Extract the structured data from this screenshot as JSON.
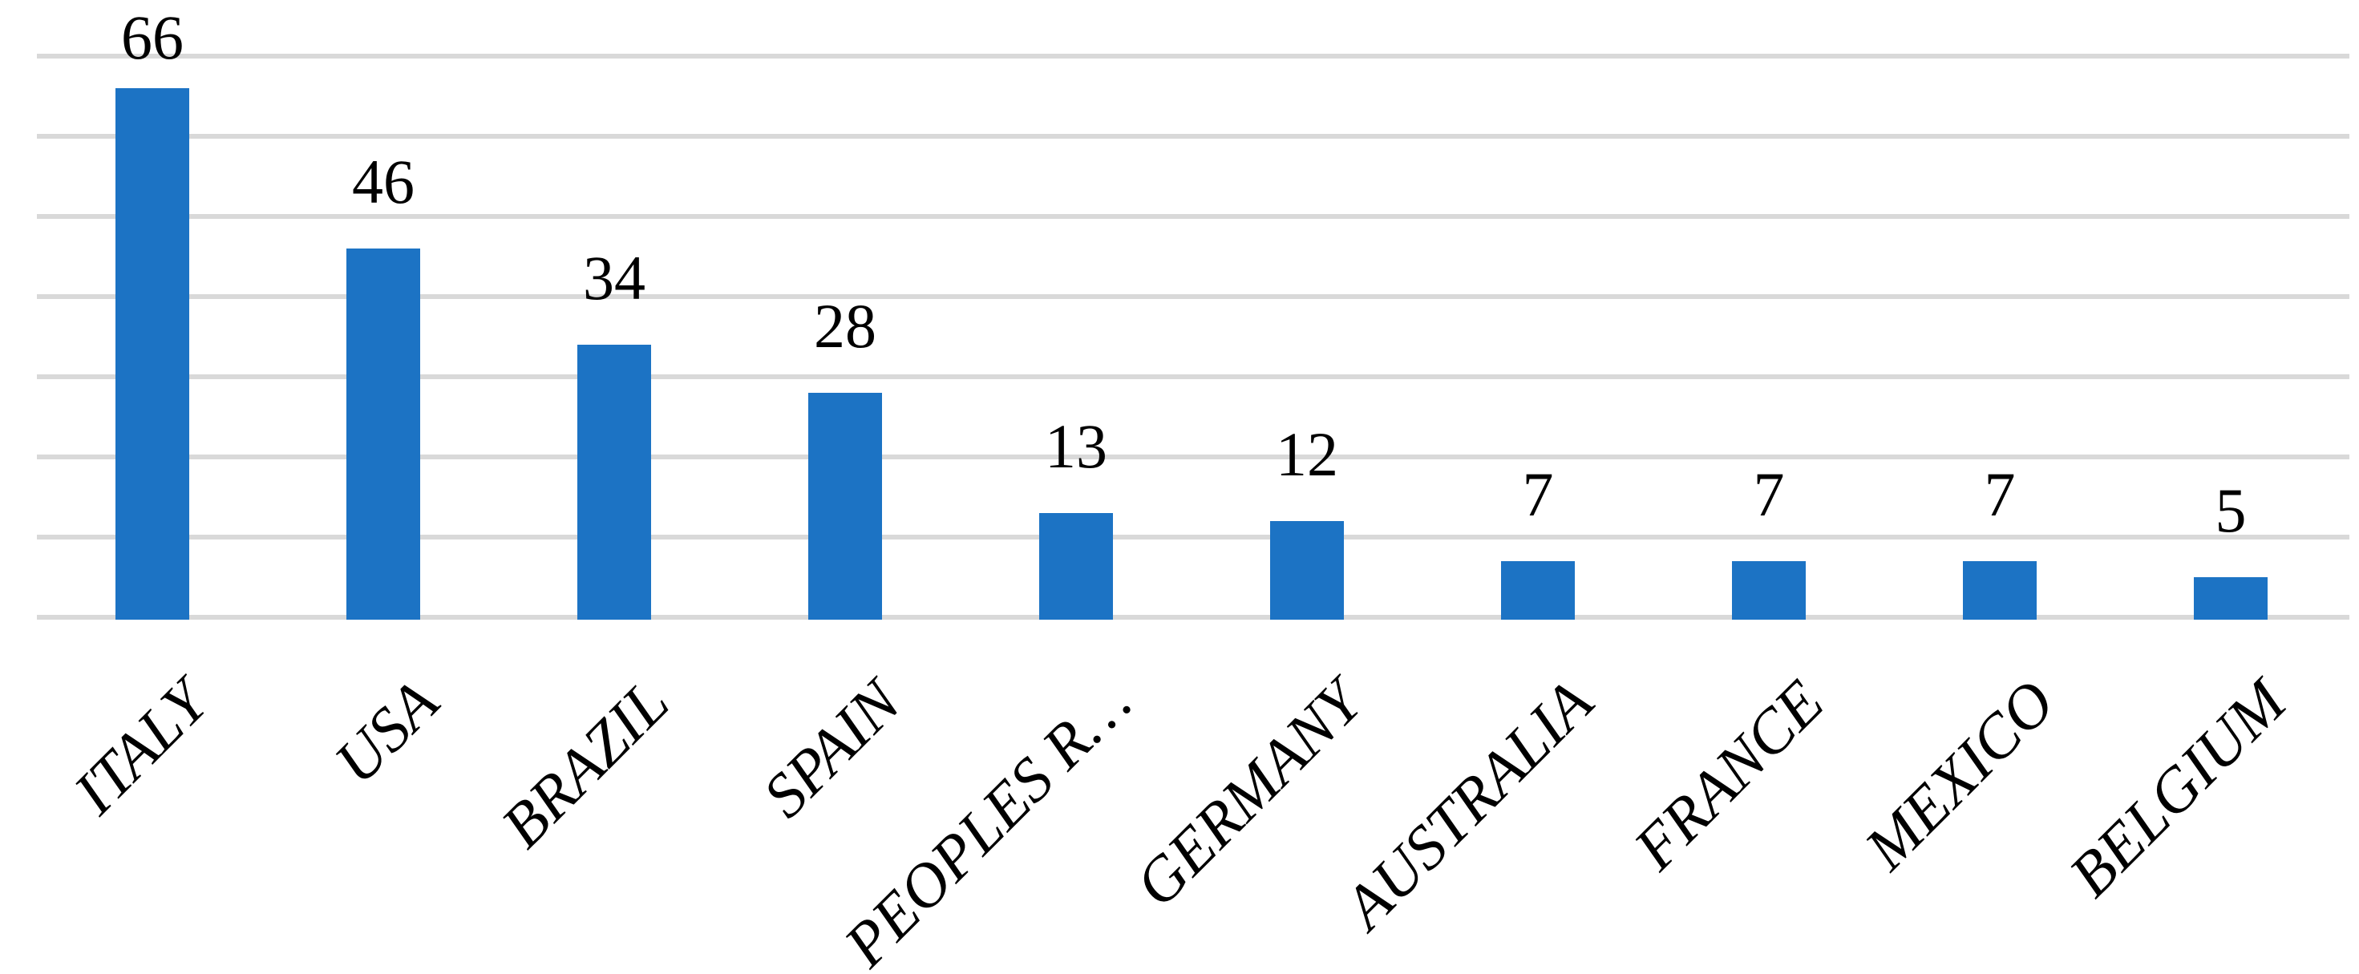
{
  "chart_data": {
    "type": "bar",
    "title": "",
    "xlabel": "",
    "ylabel": "",
    "categories": [
      "ITALY",
      "USA",
      "BRAZIL",
      "SPAIN",
      "PEOPLES R…",
      "GERMANY",
      "AUSTRALIA",
      "FRANCE",
      "MEXICO",
      "BELGIUM"
    ],
    "values": [
      66,
      46,
      34,
      28,
      13,
      12,
      7,
      7,
      7,
      5
    ],
    "data_labels": [
      "66",
      "46",
      "34",
      "28",
      "13",
      "12",
      "7",
      "7",
      "7",
      "5"
    ],
    "ylim": [
      0,
      70
    ],
    "ytick_step": 10,
    "y_tick_labels_visible": false,
    "grid": "horizontal",
    "legend": "none",
    "category_label_rotation_deg": 45,
    "colors": {
      "bar": "#1C73C4",
      "gridline": "#D9D9D9",
      "label_text": "#000000",
      "background": "#FFFFFF"
    }
  }
}
